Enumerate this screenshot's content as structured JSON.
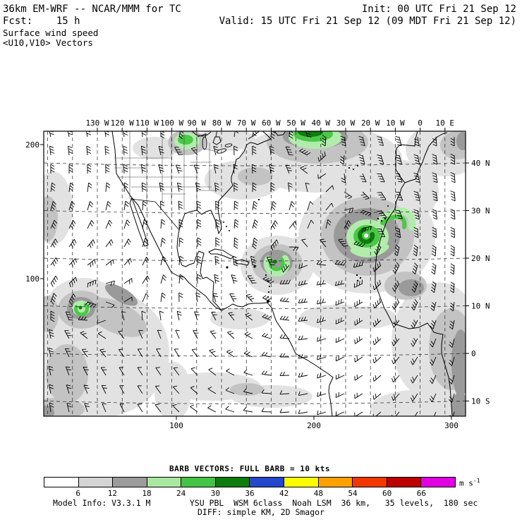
{
  "header": {
    "title": "36km EM-WRF -- NCAR/MMM for TC",
    "fcst": "Fcst:    15 h",
    "field": "Surface wind speed",
    "vectors": "<U10,V10> Vectors",
    "init": "Init: 00 UTC Fri 21 Sep 12",
    "valid": "Valid: 15 UTC Fri 21 Sep 12 (09 MDT Fri 21 Sep 12)"
  },
  "map": {
    "top_axis_labels": [
      "130 W",
      "120 W",
      "110 W",
      "100 W",
      "90 W",
      "80 W",
      "70 W",
      "60 W",
      "50 W",
      "40 W",
      "30 W",
      "20 W",
      "10 W",
      "0",
      "10 E"
    ],
    "right_axis_labels": [
      "40 N",
      "30 N",
      "20 N",
      "10 N",
      "0",
      "10 S"
    ],
    "left_axis_labels": [
      "200",
      "100"
    ],
    "bottom_axis_labels": [
      "100",
      "200",
      "300"
    ]
  },
  "legend": {
    "title": "BARB VECTORS:  FULL BARB = 10 kts",
    "tick_labels": [
      "6",
      "12",
      "18",
      "24",
      "30",
      "36",
      "42",
      "48",
      "54",
      "60",
      "66"
    ],
    "colors": [
      "#ffffff",
      "#d4d4d4",
      "#9c9c9c",
      "#a8e8a0",
      "#44c444",
      "#0c7c0c",
      "#2446cc",
      "#fcfc00",
      "#fca000",
      "#f03800",
      "#bc0000",
      "#e000e0"
    ],
    "unit": "m s",
    "unit_exponent": "-1"
  },
  "map_shading": {
    "light_gray": "#e2e2e2",
    "medium_gray": "#c3c3c3",
    "dark_gray": "#9a9a9a",
    "light_green": "#b2ecac",
    "green": "#4cc848",
    "dark_green": "#0e7d0e"
  },
  "footer": {
    "line1": "Model Info: V3.3.1 M        YSU PBL  WSM 6class  Noah LSM  36 km,   35 levels,  180 sec",
    "line2": "DIFF: simple KM, 2D Smagor"
  }
}
